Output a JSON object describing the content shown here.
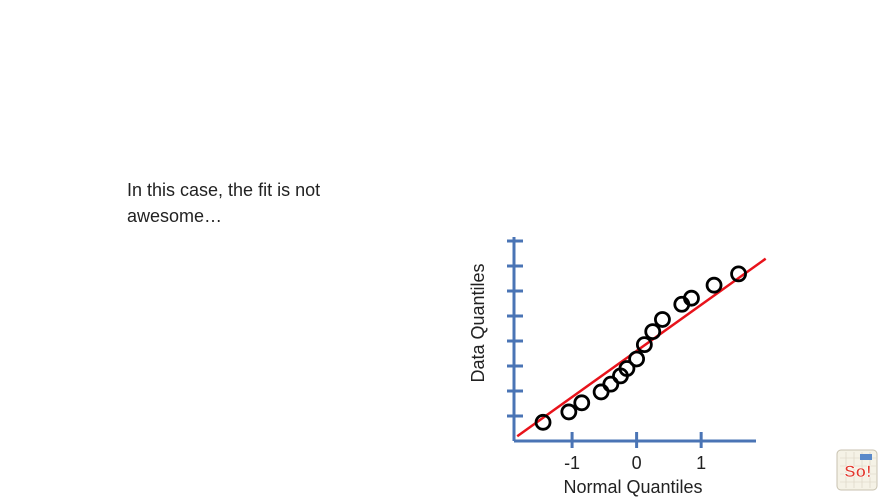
{
  "slide": {
    "text": "In this case, the fit is not awesome…"
  },
  "chart_data": {
    "type": "scatter",
    "title": "",
    "xlabel": "Normal Quantiles",
    "ylabel": "Data Quantiles",
    "xlim": [
      -1.9,
      1.85
    ],
    "ylim": [
      -2.05,
      2.65
    ],
    "x_ticks": [
      -1,
      0,
      1
    ],
    "x_tick_labels": [
      "-1",
      "0",
      "1"
    ],
    "y_tick_count": 8,
    "grid": false,
    "points": [
      {
        "x": -1.45,
        "y": -1.62
      },
      {
        "x": -1.05,
        "y": -1.38
      },
      {
        "x": -0.85,
        "y": -1.17
      },
      {
        "x": -0.55,
        "y": -0.92
      },
      {
        "x": -0.4,
        "y": -0.74
      },
      {
        "x": -0.25,
        "y": -0.55
      },
      {
        "x": -0.15,
        "y": -0.38
      },
      {
        "x": 0.0,
        "y": -0.16
      },
      {
        "x": 0.12,
        "y": 0.17
      },
      {
        "x": 0.25,
        "y": 0.47
      },
      {
        "x": 0.4,
        "y": 0.75
      },
      {
        "x": 0.7,
        "y": 1.1
      },
      {
        "x": 0.85,
        "y": 1.24
      },
      {
        "x": 1.2,
        "y": 1.54
      },
      {
        "x": 1.58,
        "y": 1.8
      }
    ],
    "fit_line": {
      "x1": -1.85,
      "y1": -1.94,
      "x2": 2.0,
      "y2": 2.15
    },
    "colors": {
      "axis": "#4a74b5",
      "fit_line": "#e8131b",
      "points": "#000000"
    }
  },
  "logo": {
    "icon": "statquest-logo-icon",
    "text": "So!"
  }
}
